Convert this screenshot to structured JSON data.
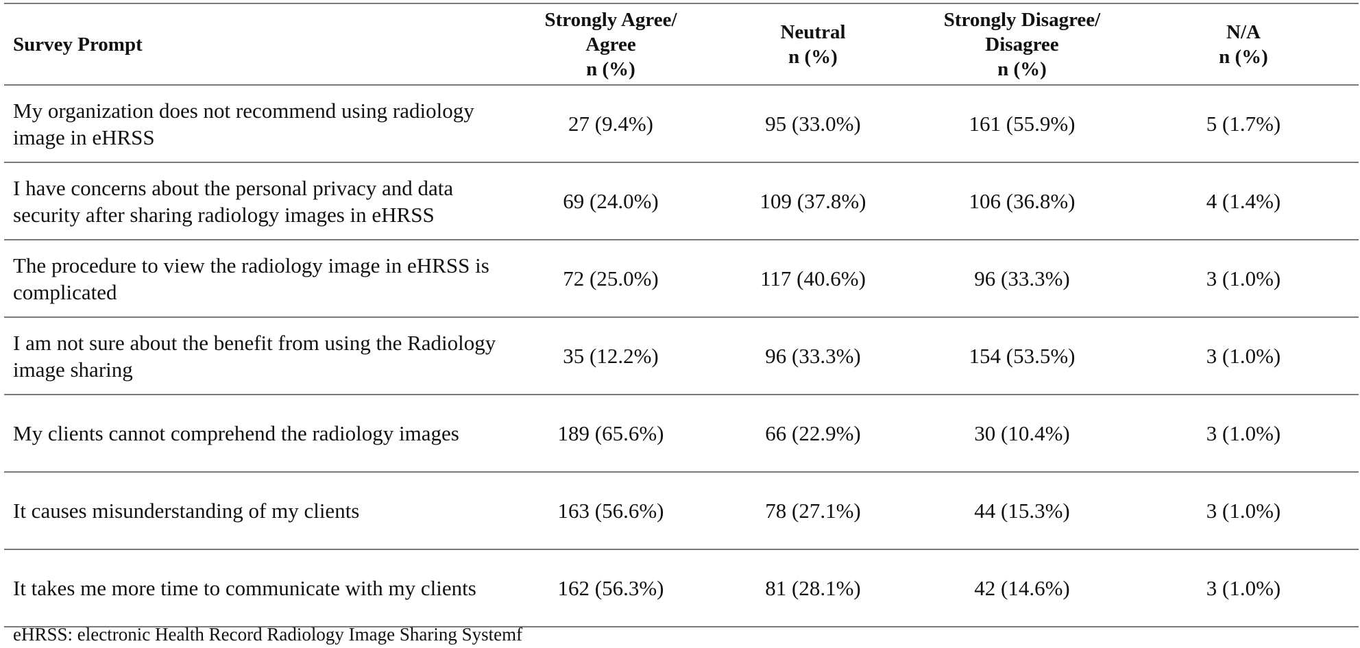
{
  "table": {
    "headers": [
      {
        "lines": [
          "Survey Prompt"
        ]
      },
      {
        "lines": [
          "Strongly Agree/",
          "Agree",
          "n (%)"
        ]
      },
      {
        "lines": [
          "Neutral",
          "n (%)"
        ]
      },
      {
        "lines": [
          "Strongly Disagree/",
          "Disagree",
          "n (%)"
        ]
      },
      {
        "lines": [
          "N/A",
          "n (%)"
        ]
      }
    ],
    "rows": [
      {
        "prompt": "My organization does not recommend using radiology image in eHRSS",
        "agree": "27 (9.4%)",
        "neutral": "95 (33.0%)",
        "disagree": "161 (55.9%)",
        "na": "5 (1.7%)"
      },
      {
        "prompt": "I have concerns about the personal privacy and data security after sharing radiology images in eHRSS",
        "agree": "69 (24.0%)",
        "neutral": "109 (37.8%)",
        "disagree": "106 (36.8%)",
        "na": "4 (1.4%)"
      },
      {
        "prompt": "The procedure to view the radiology image in eHRSS is complicated",
        "agree": "72 (25.0%)",
        "neutral": "117 (40.6%)",
        "disagree": "96 (33.3%)",
        "na": "3 (1.0%)"
      },
      {
        "prompt": "I am not sure about the benefit from using the Radiology image sharing",
        "agree": "35 (12.2%)",
        "neutral": "96 (33.3%)",
        "disagree": "154 (53.5%)",
        "na": "3 (1.0%)"
      },
      {
        "prompt": "My clients cannot comprehend the radiology images",
        "agree": "189 (65.6%)",
        "neutral": "66 (22.9%)",
        "disagree": "30 (10.4%)",
        "na": "3 (1.0%)"
      },
      {
        "prompt": "It causes misunderstanding of my clients",
        "agree": "163 (56.6%)",
        "neutral": "78 (27.1%)",
        "disagree": "44 (15.3%)",
        "na": "3 (1.0%)"
      },
      {
        "prompt": "It takes me more time to communicate with my clients",
        "agree": "162 (56.3%)",
        "neutral": "81 (28.1%)",
        "disagree": "42 (14.6%)",
        "na": "3 (1.0%)"
      }
    ]
  },
  "footnote": "eHRSS: electronic Health Record Radiology Image Sharing Systemf"
}
